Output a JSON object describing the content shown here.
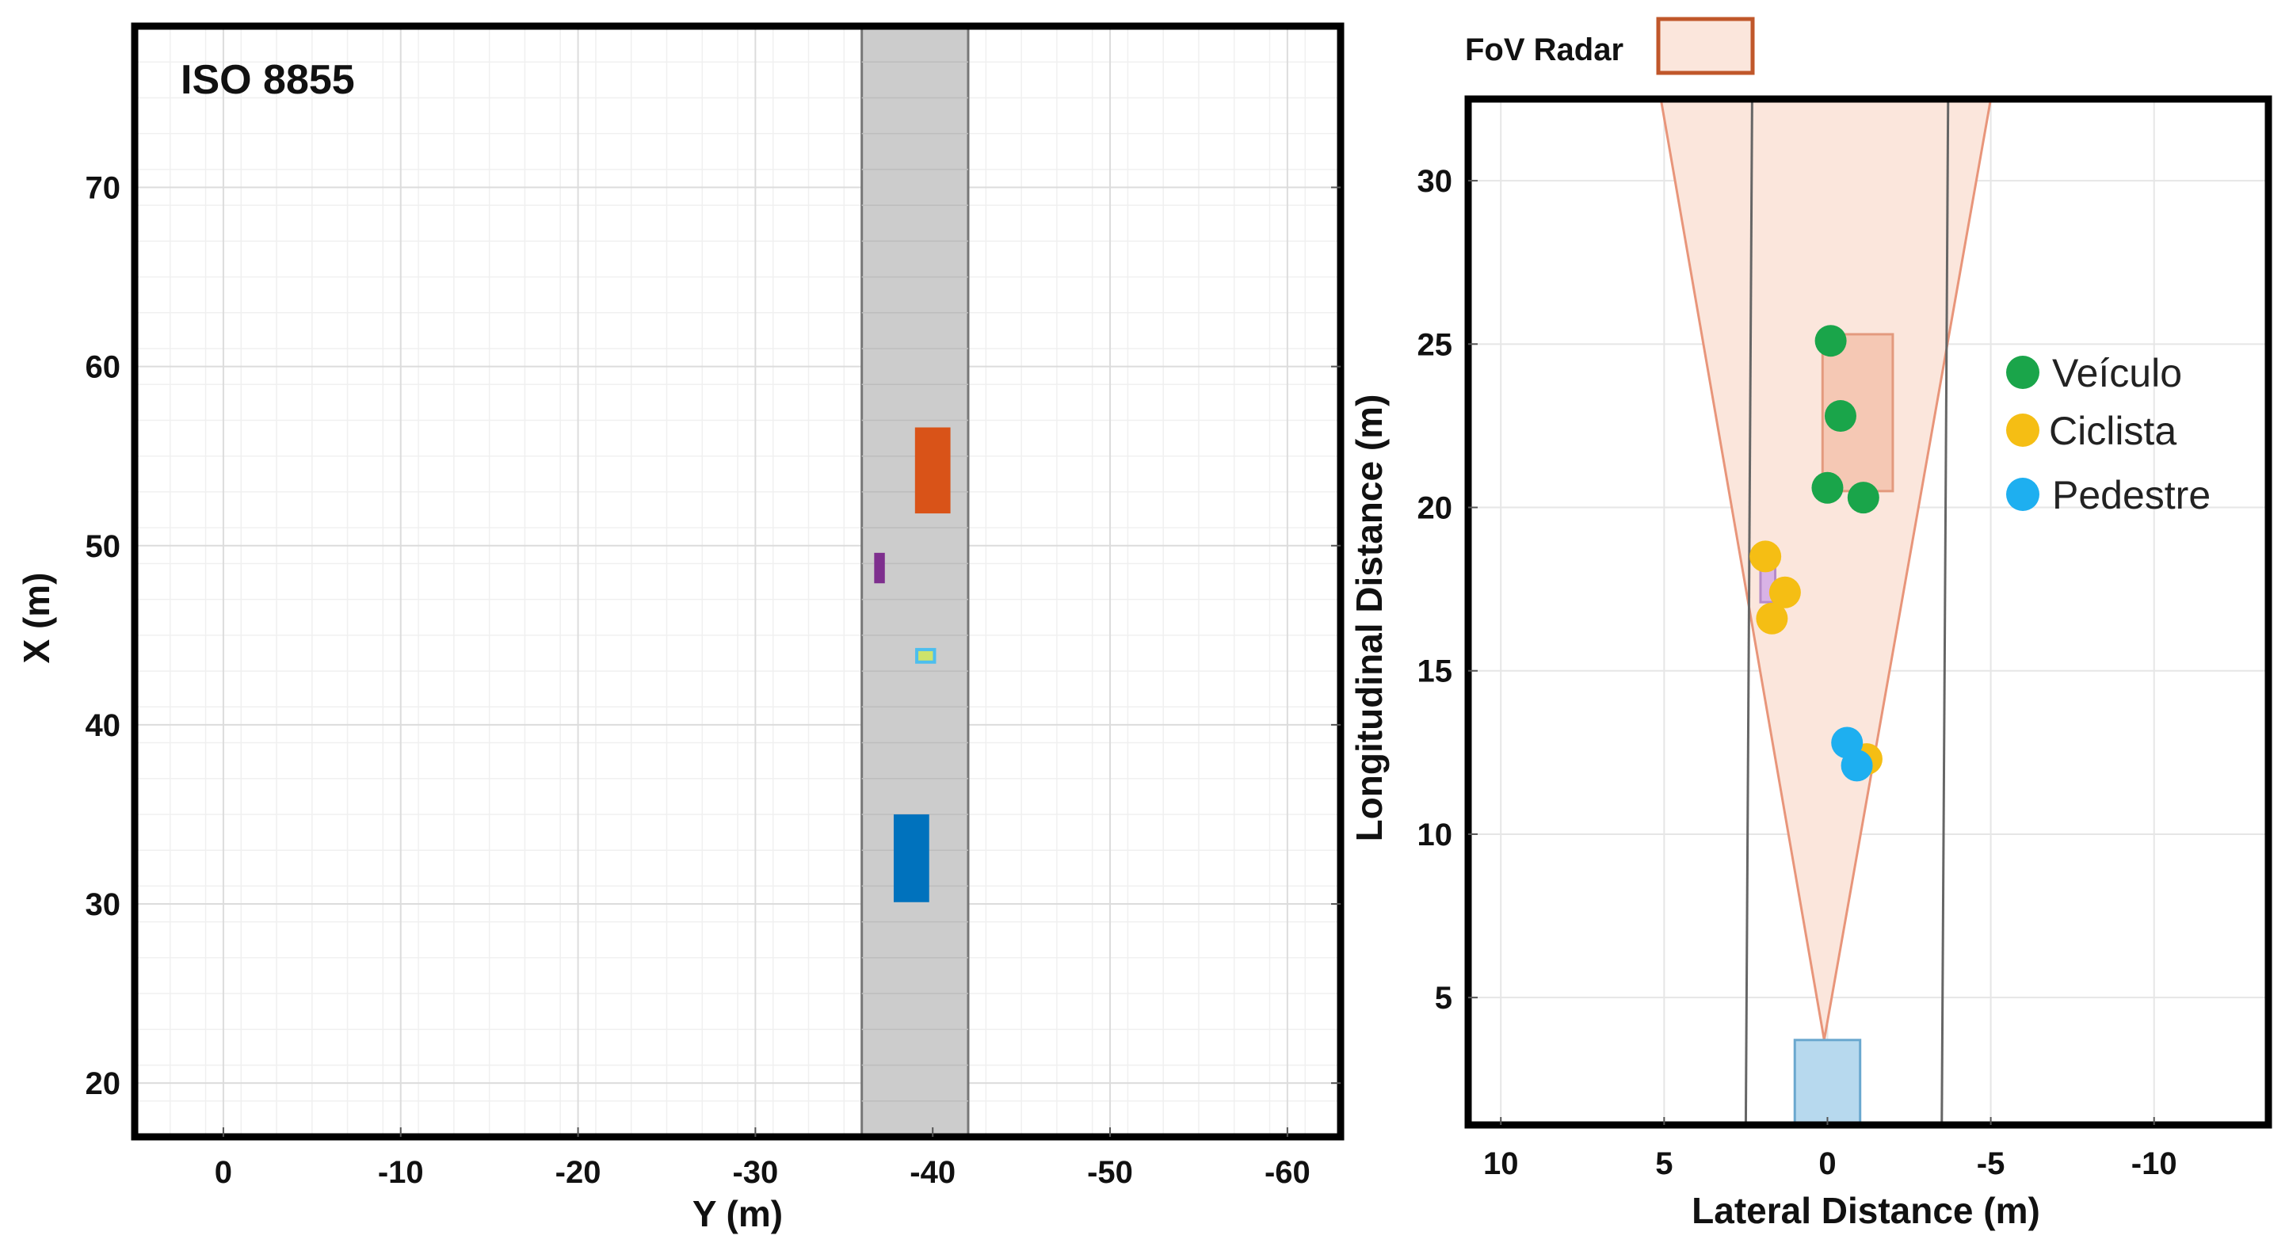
{
  "chart_data": [
    {
      "type": "scatter",
      "title": "ISO 8855",
      "xlabel": "Y (m)",
      "ylabel": "X (m)",
      "xlim": [
        5,
        -63
      ],
      "ylim": [
        17,
        79
      ],
      "xticks": [
        0,
        -10,
        -20,
        -30,
        -40,
        -50,
        -60
      ],
      "yticks": [
        20,
        30,
        40,
        50,
        60,
        70
      ],
      "grid": true,
      "road": {
        "y_min": -36,
        "y_max": -42,
        "color": "#cccccc"
      },
      "objects": [
        {
          "name": "vehicle",
          "y": [
            -39,
            -41
          ],
          "x": [
            51.8,
            56.6
          ],
          "color": "#d95318"
        },
        {
          "name": "cyclist",
          "y": [
            -36.7,
            -37.3
          ],
          "x": [
            47.9,
            49.6
          ],
          "color": "#7e2f8e"
        },
        {
          "name": "pedestrian",
          "y": [
            -39.1,
            -40.1
          ],
          "x": [
            43.5,
            44.2
          ],
          "color": "#4dbeee"
        },
        {
          "name": "ego",
          "y": [
            -37.8,
            -39.8
          ],
          "x": [
            30.1,
            35
          ],
          "color": "#0072bd"
        }
      ]
    },
    {
      "type": "scatter",
      "xlabel": "Lateral Distance (m)",
      "ylabel": "Longitudinal Distance (m)",
      "xlim": [
        11,
        -13.5
      ],
      "ylim": [
        1.1,
        32.5
      ],
      "xticks": [
        10,
        5,
        0,
        -5,
        -10
      ],
      "yticks": [
        5,
        10,
        15,
        20,
        25,
        30
      ],
      "fov_legend": "FoV Radar",
      "fov": {
        "apex": [
          0.1,
          3.7
        ],
        "left_top_x": 5.1,
        "right_top_x": -5,
        "top_y": 32.5,
        "color": "#fbe6dc",
        "edge": "#e8957a"
      },
      "lanes": [
        2.5,
        -3.5
      ],
      "target_box": {
        "x": [
          0.15,
          -2
        ],
        "y": [
          20.5,
          25.3
        ],
        "color": "#f5c8b4"
      },
      "cyclist_box": {
        "x": [
          2.05,
          1.6
        ],
        "y": [
          17.1,
          18.3
        ],
        "color": "#d9b3e6"
      },
      "ego_box": {
        "x": [
          1,
          -1
        ],
        "y": [
          1.1,
          3.7
        ],
        "color": "#b7d9ee"
      },
      "series": [
        {
          "name": "Veículo",
          "color": "#1aa54a",
          "points": [
            [
              -0.1,
              25.1
            ],
            [
              -0.4,
              22.8
            ],
            [
              0,
              20.6
            ],
            [
              -1.1,
              20.3
            ]
          ]
        },
        {
          "name": "Ciclista",
          "color": "#f5be14",
          "points": [
            [
              1.9,
              18.5
            ],
            [
              1.3,
              17.4
            ],
            [
              1.7,
              16.6
            ],
            [
              -1.2,
              12.3
            ]
          ]
        },
        {
          "name": "Pedestre",
          "color": "#1eaff0",
          "points": [
            [
              -0.6,
              12.8
            ],
            [
              -0.9,
              12.1
            ]
          ]
        }
      ]
    }
  ]
}
